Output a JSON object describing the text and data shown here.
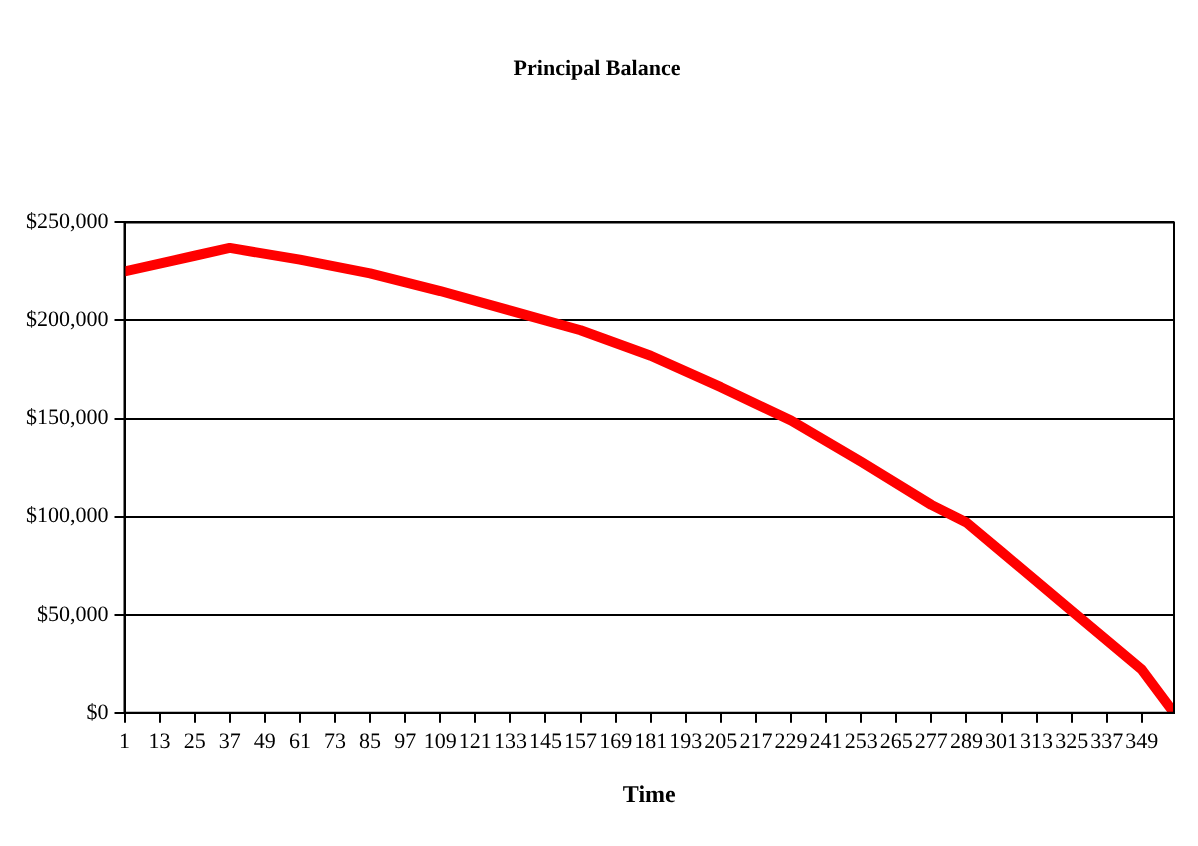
{
  "chart_data": {
    "type": "line",
    "title": "Principal Balance",
    "xlabel": "Time",
    "x": [
      1,
      13,
      25,
      37,
      61,
      85,
      109,
      133,
      157,
      181,
      205,
      229,
      253,
      277,
      289,
      301,
      325,
      349,
      360
    ],
    "series": [
      {
        "color": "#ff0000",
        "values": [
          225000,
          229000,
          233000,
          237000,
          231000,
          224000,
          215000,
          205000,
          195000,
          182000,
          166000,
          149000,
          128000,
          106000,
          97000,
          82000,
          52000,
          22000,
          0
        ]
      }
    ],
    "xlim": [
      1,
      360
    ],
    "xticks": [
      1,
      13,
      25,
      37,
      49,
      61,
      73,
      85,
      97,
      109,
      121,
      133,
      145,
      157,
      169,
      181,
      193,
      205,
      217,
      229,
      241,
      253,
      265,
      277,
      289,
      301,
      313,
      325,
      337,
      349
    ],
    "ylim": [
      0,
      250000
    ],
    "yticks": [
      {
        "value": 0,
        "label": "$0"
      },
      {
        "value": 50000,
        "label": "$50,000"
      },
      {
        "value": 100000,
        "label": "$100,000"
      },
      {
        "value": 150000,
        "label": "$150,000"
      },
      {
        "value": 200000,
        "label": "$200,000"
      },
      {
        "value": 250000,
        "label": "$250,000"
      }
    ],
    "grid": "y",
    "legend": false,
    "marker": "none",
    "line_style": "solid"
  }
}
